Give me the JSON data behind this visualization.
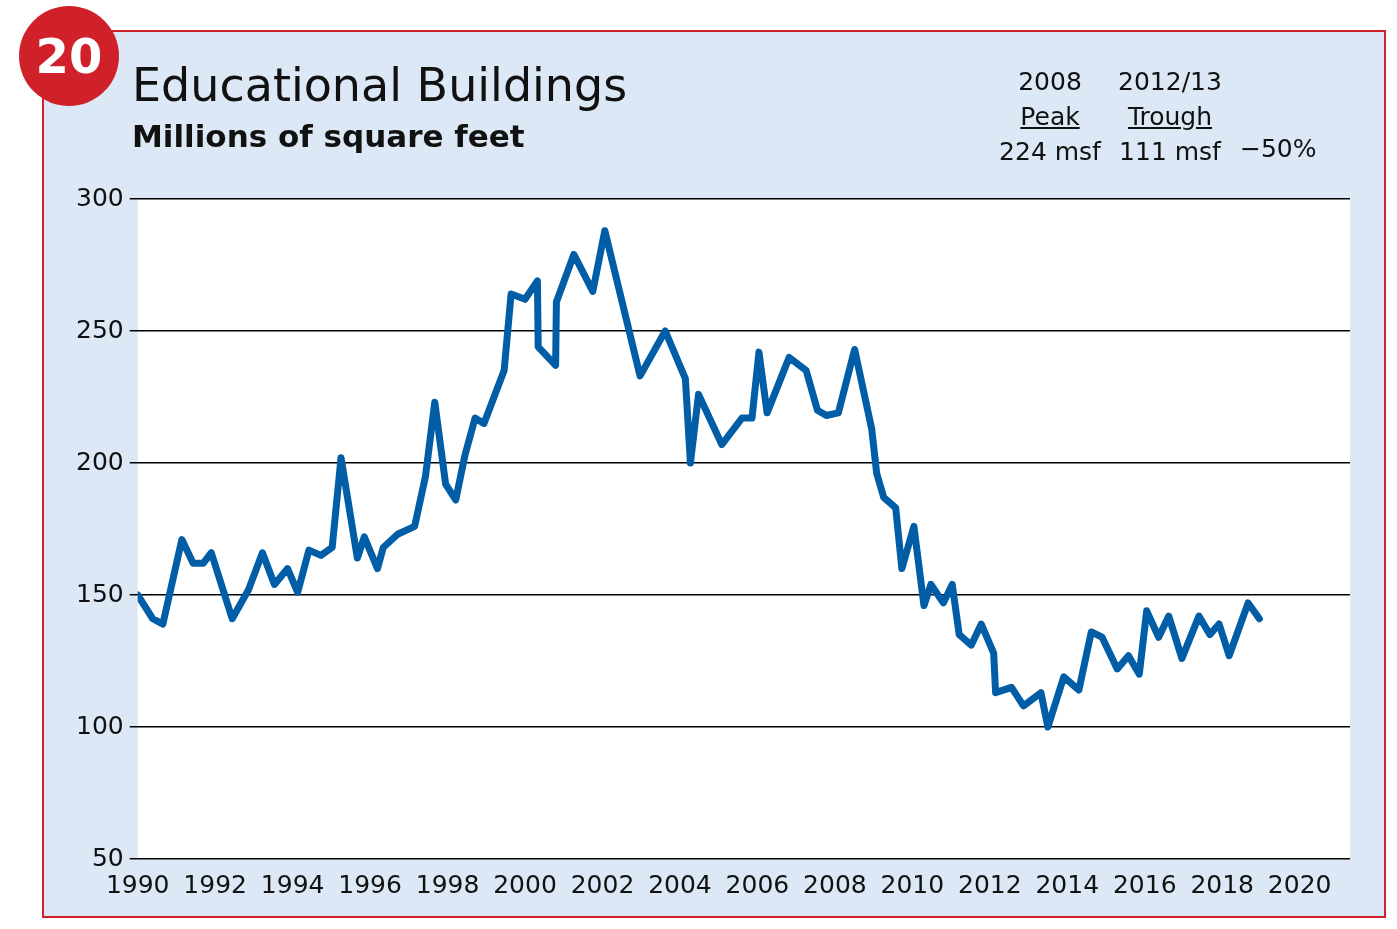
{
  "chart_data": {
    "type": "line",
    "title": "Educational Buildings",
    "subtitle": "Millions of square feet",
    "annotations": [
      "20",
      "2008",
      "Peak",
      "224 msf",
      "2012/13",
      "Trough",
      "111 msf",
      "−50%"
    ],
    "x": [
      1990.0,
      1990.39,
      1990.65,
      1991.14,
      1991.43,
      1991.69,
      1991.9,
      1992.44,
      1992.86,
      1993.22,
      1993.53,
      1993.87,
      1994.13,
      1994.42,
      1994.73,
      1995.02,
      1995.25,
      1995.67,
      1995.85,
      1996.19,
      1996.34,
      1996.71,
      1997.15,
      1997.43,
      1997.67,
      1997.95,
      1998.21,
      1998.45,
      1998.71,
      1998.94,
      1999.46,
      1999.64,
      2000.0,
      2000.32,
      2000.34,
      2000.79,
      2000.81,
      2001.26,
      2001.75,
      2002.06,
      2002.97,
      2003.62,
      2004.14,
      2004.27,
      2004.48,
      2005.08,
      2005.6,
      2005.86,
      2006.04,
      2006.25,
      2006.82,
      2007.26,
      2007.55,
      2007.78,
      2008.09,
      2008.51,
      2008.95,
      2009.08,
      2009.26,
      2009.57,
      2009.73,
      2010.04,
      2010.3,
      2010.48,
      2010.8,
      2011.03,
      2011.21,
      2011.52,
      2011.78,
      2012.1,
      2012.15,
      2012.56,
      2012.87,
      2013.32,
      2013.5,
      2013.91,
      2014.3,
      2014.62,
      2014.9,
      2015.29,
      2015.58,
      2015.86,
      2016.05,
      2016.36,
      2016.62,
      2016.96,
      2017.4,
      2017.68,
      2017.92,
      2018.18,
      2018.67,
      2018.96
    ],
    "series": [
      {
        "color": "#005da6",
        "values": [
          150,
          141,
          139,
          171,
          162,
          162,
          166,
          141,
          152,
          166,
          154,
          160,
          151,
          167,
          165,
          168,
          202,
          164,
          172,
          160,
          168,
          173,
          176,
          195,
          223,
          192,
          186,
          203,
          217,
          215,
          235,
          264,
          262,
          269,
          244,
          237,
          261,
          279,
          265,
          288,
          233,
          250,
          232,
          200,
          226,
          207,
          217,
          217,
          242,
          219,
          240,
          235,
          220,
          218,
          219,
          243,
          213,
          196,
          187,
          183,
          160,
          176,
          146,
          154,
          147,
          154,
          135,
          131,
          139,
          128,
          113,
          115,
          108,
          113,
          100,
          119,
          114,
          136,
          134,
          122,
          127,
          120,
          144,
          134,
          142,
          126,
          142,
          135,
          139,
          127,
          147,
          141
        ]
      }
    ],
    "xlim": [
      1990,
      2021.3
    ],
    "xticks": [
      1990,
      1992,
      1994,
      1996,
      1998,
      2000,
      2002,
      2004,
      2006,
      2008,
      2010,
      2012,
      2014,
      2016,
      2018,
      2020
    ],
    "ylim": [
      50,
      300
    ],
    "yticks": [
      50,
      100,
      150,
      200,
      250,
      300
    ],
    "grid": "y",
    "legend": false,
    "marker": "none",
    "line_style": "solid"
  }
}
